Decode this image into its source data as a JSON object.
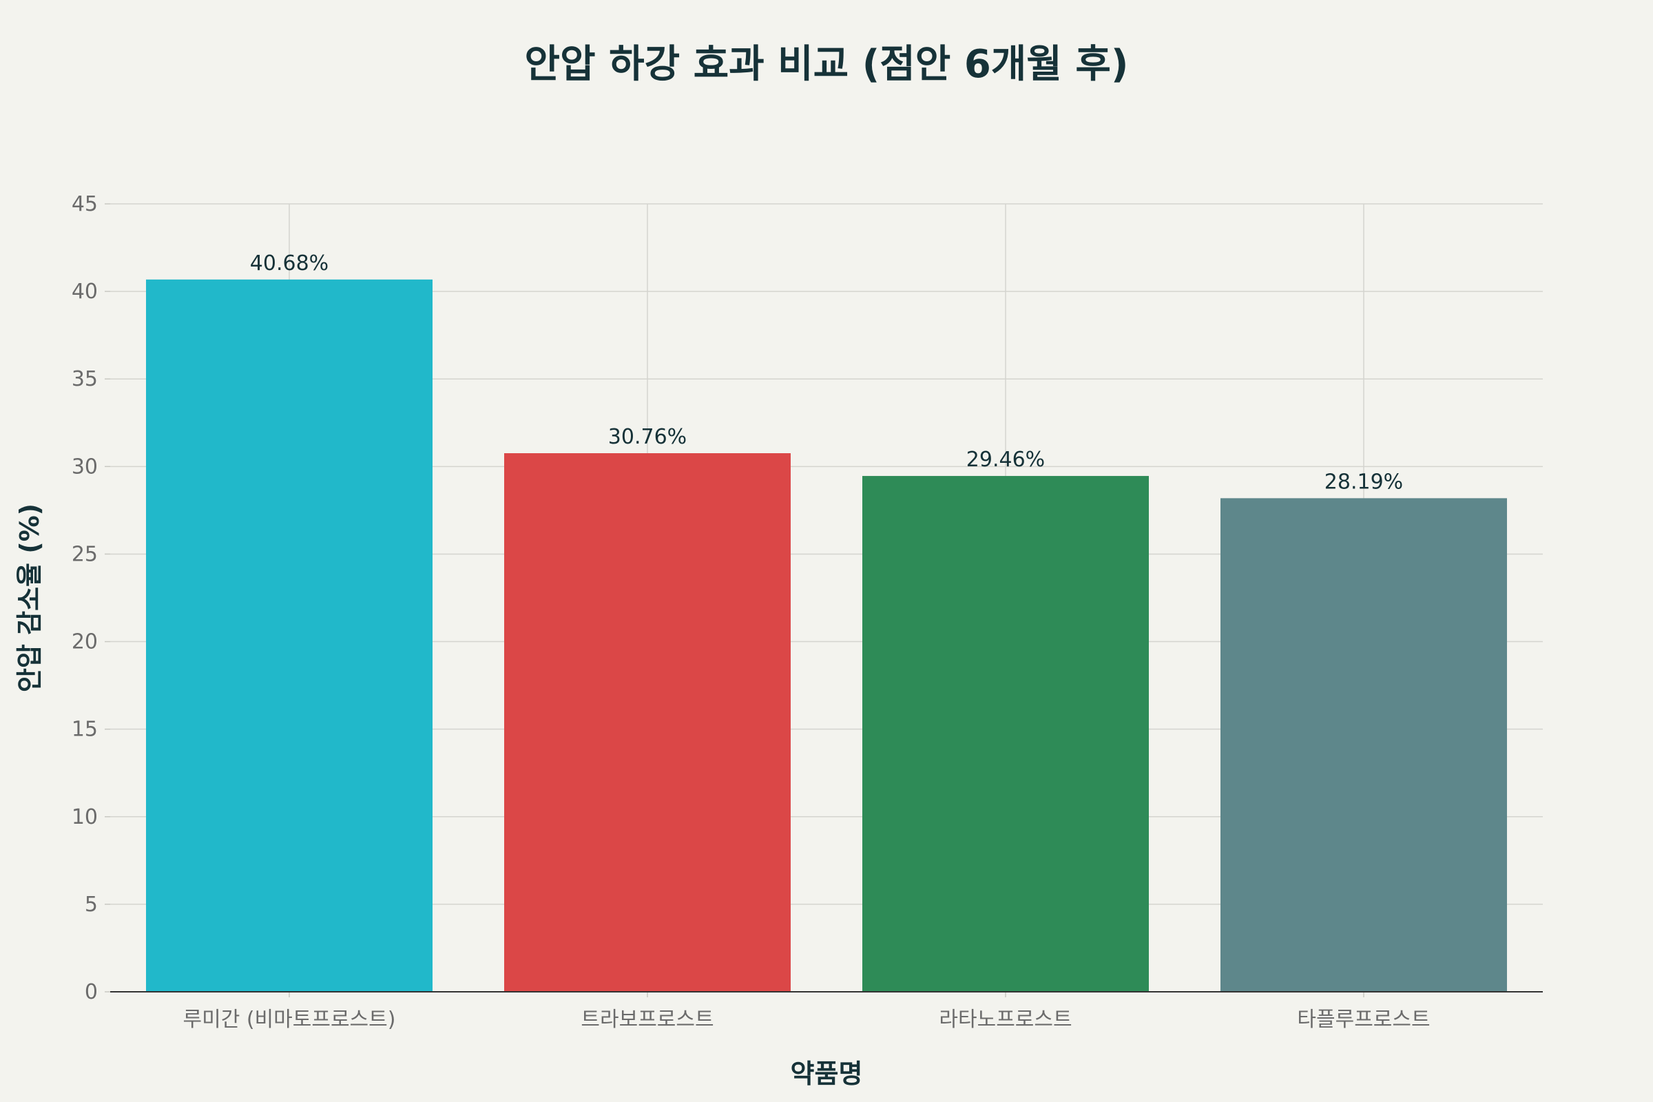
{
  "chart_data": {
    "type": "bar",
    "title": "안압 하강 효과 비교 (점안 6개월 후)",
    "xlabel": "약품명",
    "ylabel": "안압 감소율 (%)",
    "categories": [
      "루미간 (비마토프로스트)",
      "트라보프로스트",
      "라타노프로스트",
      "타플루프로스트"
    ],
    "values": [
      40.68,
      30.76,
      29.46,
      28.19
    ],
    "value_labels": [
      "40.68%",
      "30.76%",
      "29.46%",
      "28.19%"
    ],
    "colors": [
      "#21b8ca",
      "#db4747",
      "#2e8b57",
      "#5e878b"
    ],
    "ylim": [
      0,
      45
    ],
    "yticks": [
      0,
      5,
      10,
      15,
      20,
      25,
      30,
      35,
      40,
      45
    ],
    "grid": true,
    "legend": "none"
  }
}
